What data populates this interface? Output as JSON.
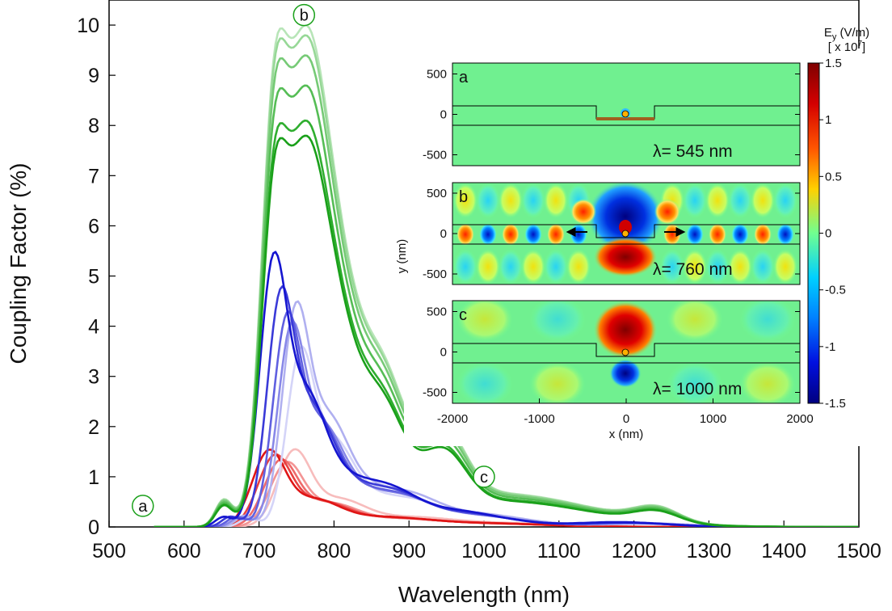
{
  "chart_data": {
    "type": "line",
    "xlabel": "Wavelength  (nm)",
    "ylabel": "Coupling Factor  (%)",
    "xlim": [
      500,
      1500
    ],
    "ylim": [
      0,
      10.5
    ],
    "xticks": [
      "500",
      "600",
      "700",
      "800",
      "900",
      "1000",
      "1100",
      "1200",
      "1300",
      "1400",
      "1500"
    ],
    "yticks": [
      "0",
      "1",
      "2",
      "3",
      "4",
      "5",
      "6",
      "7",
      "8",
      "9",
      "10"
    ],
    "grid": false,
    "markers": [
      {
        "label": "a",
        "x": 545,
        "y": 0.42
      },
      {
        "label": "b",
        "x": 760,
        "y": 10.2
      },
      {
        "label": "c",
        "x": 1000,
        "y": 1.0
      }
    ],
    "series": [
      {
        "group": "green",
        "color": "#1aa01a",
        "peak": 7.8,
        "shift": 0
      },
      {
        "group": "green",
        "color": "#2fae2f",
        "peak": 8.1,
        "shift": 0
      },
      {
        "group": "green",
        "color": "#55bd55",
        "peak": 8.8,
        "shift": 0
      },
      {
        "group": "green",
        "color": "#76ca76",
        "peak": 9.4,
        "shift": 0
      },
      {
        "group": "green",
        "color": "#97d897",
        "peak": 9.8,
        "shift": 0
      },
      {
        "group": "green",
        "color": "#b8e5b8",
        "peak": 10.0,
        "shift": 0
      },
      {
        "group": "blue",
        "color": "#1515d0",
        "peak": 5.5,
        "shift": 0
      },
      {
        "group": "blue",
        "color": "#3a3ad8",
        "peak": 4.8,
        "shift": 10
      },
      {
        "group": "blue",
        "color": "#6060e0",
        "peak": 4.3,
        "shift": 18
      },
      {
        "group": "blue",
        "color": "#8888e8",
        "peak": 4.1,
        "shift": 24
      },
      {
        "group": "blue",
        "color": "#b0b0f0",
        "peak": 4.5,
        "shift": 30
      },
      {
        "group": "blue",
        "color": "#d4d4f8",
        "peak": 3.6,
        "shift": 36
      },
      {
        "group": "red",
        "color": "#e01515",
        "peak": 1.55,
        "shift": 0
      },
      {
        "group": "red",
        "color": "#e84040",
        "peak": 1.45,
        "shift": 8
      },
      {
        "group": "red",
        "color": "#ee6a6a",
        "peak": 1.35,
        "shift": 16
      },
      {
        "group": "red",
        "color": "#f39494",
        "peak": 1.3,
        "shift": 24
      },
      {
        "group": "red",
        "color": "#f7bcbc",
        "peak": 1.55,
        "shift": 34
      }
    ],
    "inset": {
      "colorbar_title": "E",
      "colorbar_sub": "y",
      "colorbar_unit": " (V/m)",
      "colorbar_scale_pre": "[ x 10",
      "colorbar_scale_exp": "7",
      "colorbar_scale_post": "]",
      "colorbar_ticks": [
        "1.5",
        "1",
        "0.5",
        "0",
        "-0.5",
        "-1",
        "-1.5"
      ],
      "xlabel": "x  (nm)",
      "ylabel": "y  (nm)",
      "xticks": [
        "-2000",
        "-1000",
        "0",
        "1000",
        "2000"
      ],
      "yticks": [
        "500",
        "0",
        "-500"
      ],
      "panels": [
        {
          "label": "a",
          "lambda": "λ= 545 nm"
        },
        {
          "label": "b",
          "lambda": "λ= 760 nm"
        },
        {
          "label": "c",
          "lambda": "λ= 1000 nm"
        }
      ]
    }
  }
}
